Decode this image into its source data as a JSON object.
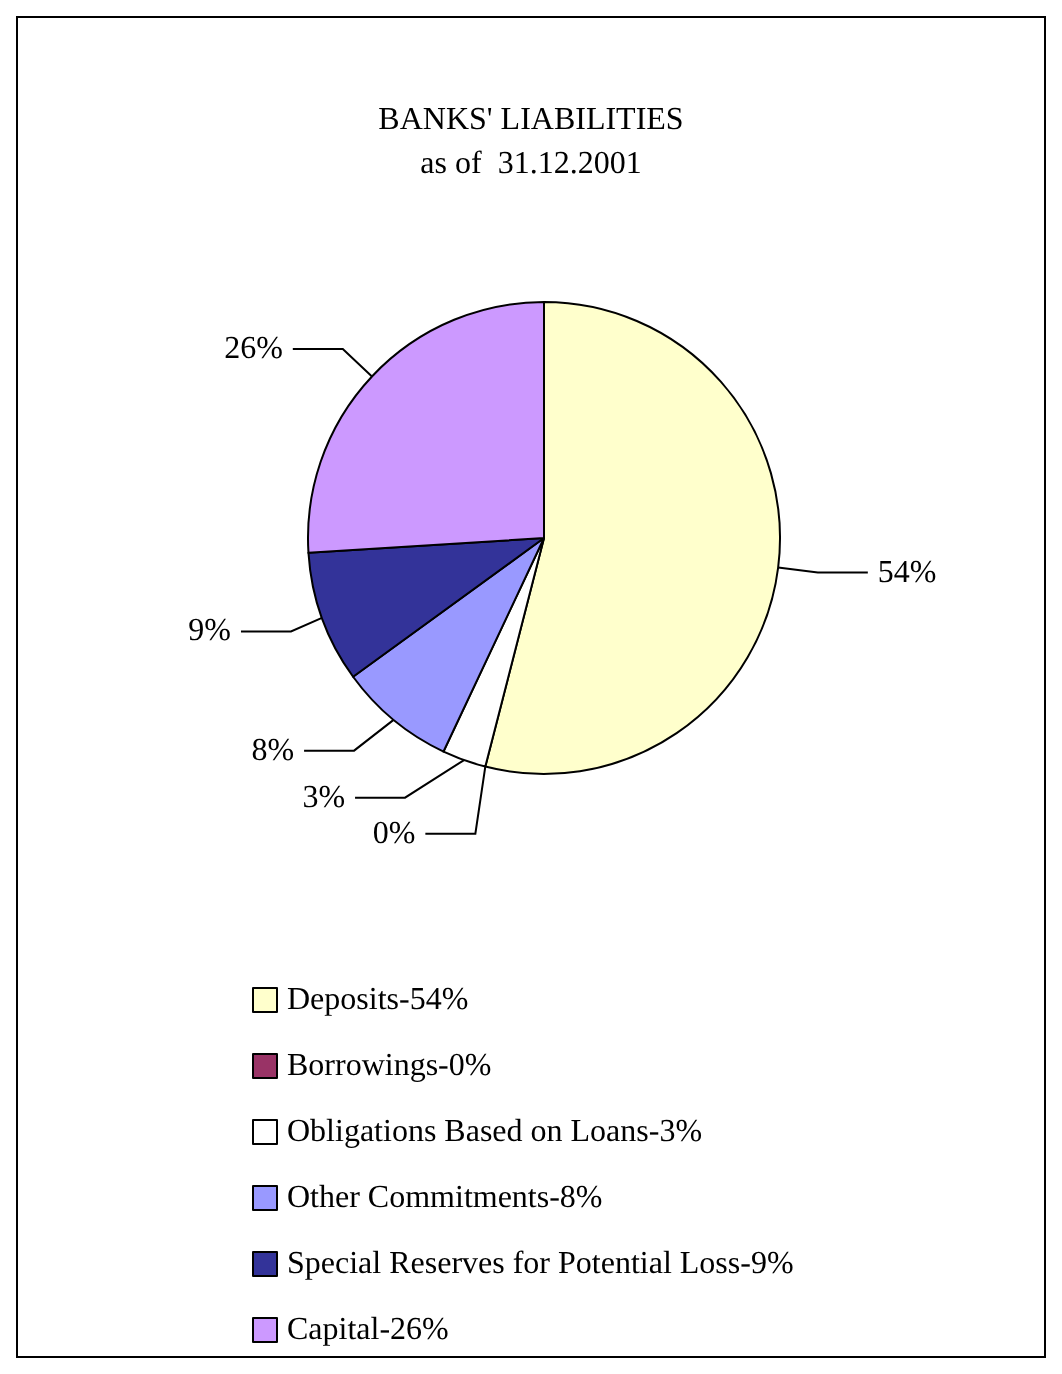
{
  "chart_data": {
    "type": "pie",
    "title": "BANKS' LIABILITIES",
    "subtitle": "as of  31.12.2001",
    "categories": [
      "Deposits-54%",
      "Borrowings-0%",
      "Obligations Based on Loans-3%",
      "Other Commitments-8%",
      "Special Reserves for Potential Loss-9%",
      "Capital-26%"
    ],
    "values": [
      54,
      0,
      3,
      8,
      9,
      26
    ],
    "value_labels": [
      "54%",
      "0%",
      "3%",
      "8%",
      "9%",
      "26%"
    ],
    "colors": [
      "#ffffcc",
      "#993366",
      "#ffffff",
      "#9999ff",
      "#333399",
      "#cc99ff"
    ],
    "legend": "bottom"
  }
}
